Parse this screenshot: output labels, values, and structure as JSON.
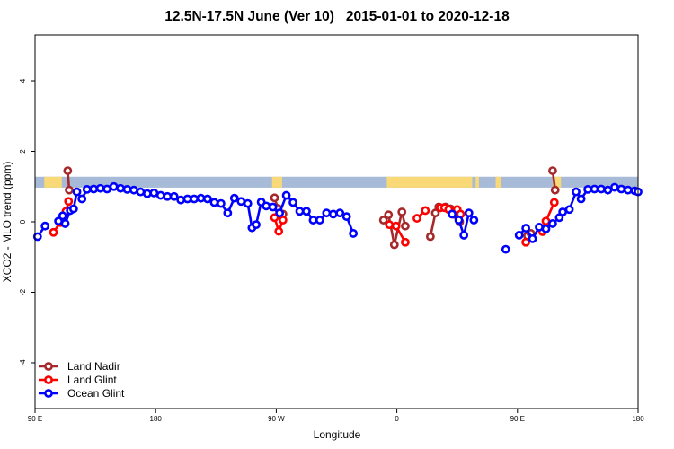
{
  "chart_data": {
    "type": "line",
    "title": "12.5N-17.5N June (Ver 10)   2015-01-01 to 2020-12-18",
    "xlabel": "Longitude",
    "ylabel": "XCO2 - MLO trend (ppm)",
    "xlim": [
      90,
      450
    ],
    "ylim": [
      -5.3,
      5.3
    ],
    "x_ticks": [
      {
        "value": 90,
        "label": "90 E"
      },
      {
        "value": 162,
        "label": "180"
      },
      {
        "value": 234,
        "label": "90 W"
      },
      {
        "value": 306,
        "label": "0"
      },
      {
        "value": 378,
        "label": "90 E"
      },
      {
        "value": 450,
        "label": "180"
      }
    ],
    "y_ticks": [
      {
        "value": -4,
        "label": "-4"
      },
      {
        "value": -2,
        "label": "-2"
      },
      {
        "value": 0,
        "label": "0"
      },
      {
        "value": 2,
        "label": "2"
      },
      {
        "value": 4,
        "label": "4"
      }
    ],
    "grid": false,
    "legend_position": "bottom-left",
    "land_strip": {
      "y_range": [
        0.97,
        1.28
      ],
      "ocean_color": "#a7bbd9",
      "land_color": "#f9d877",
      "land_segments": [
        [
          95.5,
          106
        ],
        [
          231.5,
          237.5
        ],
        [
          300,
          351
        ],
        [
          353,
          355
        ],
        [
          365,
          368
        ],
        [
          399,
          404
        ]
      ]
    },
    "series": [
      {
        "name": "Land Nadir",
        "color": "#a5292a",
        "points": [
          [
            109.5,
            1.45
          ],
          [
            110.4,
            0.9
          ],
          [
            233,
            0.68
          ],
          [
            235,
            0.38
          ],
          [
            238,
            0.22
          ],
          [
            298,
            0.05
          ],
          [
            301,
            0.2
          ],
          [
            304.5,
            -0.65
          ],
          [
            309,
            0.28
          ],
          [
            311,
            -0.12
          ],
          [
            326,
            -0.42
          ],
          [
            329,
            0.25
          ],
          [
            331,
            0.42
          ],
          [
            335,
            0.42
          ],
          [
            338,
            0.37
          ],
          [
            341,
            0.2
          ],
          [
            343.5,
            0.0
          ],
          [
            384,
            -0.4
          ],
          [
            386,
            -0.33
          ],
          [
            399,
            1.45
          ],
          [
            400.5,
            0.9
          ]
        ]
      },
      {
        "name": "Land Glint",
        "color": "#ff0000",
        "points": [
          [
            101,
            -0.3
          ],
          [
            105,
            -0.02
          ],
          [
            108.5,
            0.3
          ],
          [
            110,
            0.58
          ],
          [
            233,
            0.12
          ],
          [
            235.5,
            -0.27
          ],
          [
            238,
            0.05
          ],
          [
            301.5,
            -0.08
          ],
          [
            305.5,
            -0.12
          ],
          [
            311,
            -0.58
          ],
          [
            318,
            0.1
          ],
          [
            323,
            0.32
          ],
          [
            332,
            0.4
          ],
          [
            334.5,
            0.4
          ],
          [
            337,
            0.35
          ],
          [
            339,
            0.22
          ],
          [
            342,
            0.35
          ],
          [
            344,
            0.22
          ],
          [
            383,
            -0.58
          ],
          [
            393,
            -0.28
          ],
          [
            395,
            0.02
          ],
          [
            400,
            0.55
          ]
        ]
      },
      {
        "name": "Ocean Glint",
        "color": "#0000ff",
        "points": [
          [
            91.5,
            -0.42
          ],
          [
            96,
            -0.12
          ],
          [
            104,
            0.02
          ],
          [
            106.5,
            0.17
          ],
          [
            108,
            -0.05
          ],
          [
            111,
            0.32
          ],
          [
            113,
            0.37
          ],
          [
            115,
            0.85
          ],
          [
            118,
            0.65
          ],
          [
            121,
            0.92
          ],
          [
            125,
            0.93
          ],
          [
            129,
            0.95
          ],
          [
            133,
            0.93
          ],
          [
            137,
            1.0
          ],
          [
            141,
            0.95
          ],
          [
            145,
            0.92
          ],
          [
            149,
            0.9
          ],
          [
            153,
            0.85
          ],
          [
            157,
            0.8
          ],
          [
            161,
            0.82
          ],
          [
            165,
            0.75
          ],
          [
            169,
            0.72
          ],
          [
            173,
            0.72
          ],
          [
            177,
            0.62
          ],
          [
            181,
            0.65
          ],
          [
            185,
            0.65
          ],
          [
            189,
            0.67
          ],
          [
            193,
            0.65
          ],
          [
            197,
            0.55
          ],
          [
            201,
            0.52
          ],
          [
            205,
            0.25
          ],
          [
            209,
            0.67
          ],
          [
            213,
            0.58
          ],
          [
            217,
            0.52
          ],
          [
            219.5,
            -0.17
          ],
          [
            222,
            -0.08
          ],
          [
            225,
            0.56
          ],
          [
            228,
            0.45
          ],
          [
            232,
            0.42
          ],
          [
            236,
            0.25
          ],
          [
            240,
            0.75
          ],
          [
            244,
            0.55
          ],
          [
            248,
            0.3
          ],
          [
            252,
            0.3
          ],
          [
            256,
            0.05
          ],
          [
            260,
            0.05
          ],
          [
            264,
            0.25
          ],
          [
            268,
            0.22
          ],
          [
            272,
            0.25
          ],
          [
            276,
            0.15
          ],
          [
            280,
            -0.33
          ],
          [
            339,
            0.22
          ],
          [
            343,
            0.05
          ],
          [
            346,
            -0.38
          ],
          [
            349,
            0.25
          ],
          [
            352,
            0.05
          ],
          [
            371,
            -0.78
          ],
          [
            379,
            -0.38
          ],
          [
            383,
            -0.18
          ],
          [
            387,
            -0.48
          ],
          [
            391,
            -0.15
          ],
          [
            395,
            -0.2
          ],
          [
            399,
            -0.05
          ],
          [
            403,
            0.12
          ],
          [
            405,
            0.28
          ],
          [
            409,
            0.35
          ],
          [
            413,
            0.85
          ],
          [
            416,
            0.65
          ],
          [
            420,
            0.92
          ],
          [
            424,
            0.93
          ],
          [
            428,
            0.93
          ],
          [
            432,
            0.9
          ],
          [
            436,
            0.98
          ],
          [
            440,
            0.93
          ],
          [
            444,
            0.9
          ],
          [
            448,
            0.88
          ],
          [
            450,
            0.85
          ]
        ]
      }
    ]
  }
}
